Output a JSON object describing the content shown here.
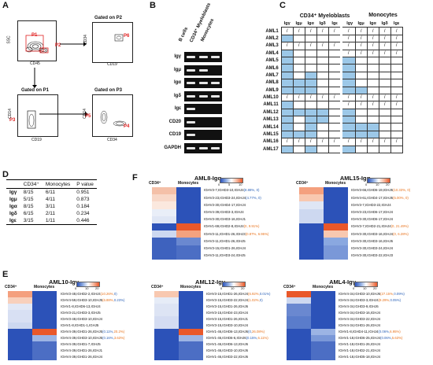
{
  "panels": {
    "A": "A",
    "B": "B",
    "C": "C",
    "D": "D",
    "E": "E",
    "F": "F"
  },
  "flow": {
    "ssc": "SSC",
    "cd45": "CD45",
    "cd34": "CD34",
    "cd19": "CD19",
    "cd14": "CD14",
    "gated_p2": "Gated on P2",
    "gated_p1": "Gated on P1",
    "gated_p3": "Gated on P3",
    "p1": "P1",
    "p2": "P2",
    "p3": "P3",
    "p4": "P4",
    "p5": "P5",
    "p6": "P6"
  },
  "gel": {
    "columns": [
      "B cells",
      "CD34⁺ Myeloblasts",
      "Monocytes"
    ],
    "rows": [
      "Igγ",
      "Igμ",
      "Igα",
      "Igδ",
      "Igε",
      "CD20",
      "CD19",
      "GAPDH"
    ],
    "bands": [
      [
        1,
        1,
        1
      ],
      [
        1,
        1,
        0
      ],
      [
        1,
        1,
        1
      ],
      [
        1,
        1,
        1
      ],
      [
        1,
        0,
        0
      ],
      [
        1,
        0,
        0
      ],
      [
        1,
        0,
        0
      ],
      [
        1,
        1,
        1
      ]
    ]
  },
  "table_c": {
    "group1": "CD34⁺ Myeloblasts",
    "group2": "Monocytes",
    "isotypes": [
      "Igγ",
      "Igμ",
      "Igα",
      "Igδ",
      "Igε"
    ],
    "rows": [
      "AML1",
      "AML2",
      "AML3",
      "AML4",
      "AML5",
      "AML6",
      "AML7",
      "AML8",
      "AML9",
      "AML10",
      "AML11",
      "AML12",
      "AML13",
      "AML14",
      "AML15",
      "AML16",
      "AML17"
    ],
    "cells": [
      [
        "/",
        "/",
        "/",
        "/",
        "/",
        "/",
        "/",
        "/",
        "/",
        "/"
      ],
      [
        "F",
        "",
        "",
        "",
        "",
        "/",
        "/",
        "/",
        "/",
        "/"
      ],
      [
        "/",
        "/",
        "/",
        "/",
        "/",
        "/",
        "/",
        "/",
        "/",
        "/"
      ],
      [
        "F",
        "",
        "",
        "",
        "",
        "/",
        "/",
        "/",
        "/",
        "/"
      ],
      [
        "F",
        "",
        "",
        "",
        "",
        "F",
        "",
        "",
        "",
        ""
      ],
      [
        "F",
        "",
        "",
        "",
        "",
        "F",
        "",
        "",
        "",
        ""
      ],
      [
        "F",
        "",
        "F",
        "",
        "",
        "F",
        "",
        "",
        "",
        ""
      ],
      [
        "F",
        "F",
        "F",
        "",
        "",
        "F",
        "",
        "",
        "",
        ""
      ],
      [
        "F",
        "F",
        "F",
        "",
        "",
        "F",
        "F",
        "",
        "",
        ""
      ],
      [
        "/",
        "/",
        "/",
        "/",
        "/",
        "/",
        "/",
        "/",
        "/",
        "/"
      ],
      [
        "F",
        "",
        "",
        "",
        "",
        "/",
        "/",
        "/",
        "/",
        "/"
      ],
      [
        "F",
        "F",
        "F",
        "F",
        "",
        "F",
        "",
        "",
        "",
        ""
      ],
      [
        "F",
        "",
        "F",
        "F",
        "",
        "F",
        "",
        "",
        "",
        ""
      ],
      [
        "F",
        "",
        "F",
        "",
        "",
        "F",
        "F",
        "F",
        "",
        ""
      ],
      [
        "F",
        "F",
        "F",
        "",
        "",
        "F",
        "F",
        "F",
        "",
        ""
      ],
      [
        "/",
        "/",
        "/",
        "/",
        "/",
        "/",
        "/",
        "/",
        "/",
        "/"
      ],
      [
        "F",
        "",
        "F",
        "",
        "",
        "F",
        "",
        "",
        "",
        ""
      ]
    ]
  },
  "table_d": {
    "headers": [
      "",
      "CD34⁺",
      "Monocytes",
      "P value"
    ],
    "rows": [
      [
        "Igγ",
        "8/15",
        "6/11",
        "0.951"
      ],
      [
        "Igμ",
        "5/15",
        "4/11",
        "0.873"
      ],
      [
        "Igα",
        "8/15",
        "3/11",
        "0.184"
      ],
      [
        "Igδ",
        "6/15",
        "2/11",
        "0.234"
      ],
      [
        "Igε",
        "3/15",
        "1/11",
        "0.446"
      ]
    ]
  },
  "heatmaps": {
    "F1": {
      "title": "AML8-Igα",
      "col1": "CD34⁺",
      "col2": "Monocytes",
      "scale": [
        "0",
        "5",
        "10"
      ],
      "rows": [
        {
          "t": "IGHV3-7,IGHD3-10,IGHJ4 ",
          "p1": "(8.88%, 0)",
          "c1": "b"
        },
        {
          "t": "IGHV3-23,IGHD3-24,IGHJ4 ",
          "p1": "(4.77%, 0)",
          "c1": "b"
        },
        {
          "t": "IGHV3-30,IGHD4-17,IGHJ4",
          "p1": "",
          "c1": ""
        },
        {
          "t": "IGHV4-39,IGHD3-3,IGHJ4",
          "p1": "",
          "c1": ""
        },
        {
          "t": "IGHV3-30,IGHD3-16,IGHJ1",
          "p1": "",
          "c1": ""
        },
        {
          "t": "IGHV1-69,IGHD2-8,IGHJ4 ",
          "p1": "(0, 9.91%)",
          "c1": "o"
        },
        {
          "t": "IGHV3-11,IGHD1-26,IGHJ3 ",
          "p1": "(0.87%, 6.95%)",
          "c1": "o"
        },
        {
          "t": "IGHV3-11,IGHD1-26,IGHJ5",
          "p1": "",
          "c1": ""
        },
        {
          "t": "IGHV3-15,IGHD1-26,IGHJ4",
          "p1": "",
          "c1": ""
        },
        {
          "t": "IGHV3-11,IGHD3-24,IGHJ5",
          "p1": "",
          "c1": ""
        }
      ],
      "cells": [
        [
          "#f4c0a8",
          "#2c52b8"
        ],
        [
          "#f8d8c8",
          "#2c52b8"
        ],
        [
          "#fbe8de",
          "#2c52b8"
        ],
        [
          "#e9eef8",
          "#2c52b8"
        ],
        [
          "#dfe6f5",
          "#2c52b8"
        ],
        [
          "#2c52b8",
          "#e9582a"
        ],
        [
          "#cdd8f0",
          "#f3a27f"
        ],
        [
          "#3e62be",
          "#6a88d0"
        ],
        [
          "#3e62be",
          "#4c6ec4"
        ],
        [
          "#3e62be",
          "#4c6ec4"
        ]
      ]
    },
    "F2": {
      "title": "AML15-Igα",
      "col1": "CD34⁺",
      "col2": "Monocytes",
      "scale": [
        "0",
        "10",
        "20"
      ],
      "rows": [
        {
          "t": "IGHV3-66,IGHD6-19,IGHJ6 ",
          "p1": "(10.33%, 0)",
          "c1": "o"
        },
        {
          "t": "IGHV4-61,IGHD4-17,IGHJ6 ",
          "p1": "(5.00%, 0)",
          "c1": "o"
        },
        {
          "t": "IGHV3-7,IGHD3-22,IGHJ4",
          "p1": "",
          "c1": ""
        },
        {
          "t": "IGHV3-23,IGHD6-17,IGHJ4",
          "p1": "",
          "c1": ""
        },
        {
          "t": "IGHV3-30,IGHD6-17,IGHJ4",
          "p1": "",
          "c1": ""
        },
        {
          "t": "IGHV3-7,IGHD2-21,IGHJ4 ",
          "p1": "(0, 21.49%)",
          "c1": "o"
        },
        {
          "t": "IGHV3-30,IGHD3-16,IGHJ4 ",
          "p1": "(0, 6.28%)",
          "c1": "o"
        },
        {
          "t": "IGHV3-30,IGHD3-16,IGHJ6",
          "p1": "",
          "c1": ""
        },
        {
          "t": "IGHV3-30,IGHD3-24,IGHJ4",
          "p1": "",
          "c1": ""
        },
        {
          "t": "IGHV3-30,IGHD3-22,IGHJ3",
          "p1": "",
          "c1": ""
        }
      ],
      "cells": [
        [
          "#f4a07e",
          "#2c52b8"
        ],
        [
          "#f8c8b0",
          "#2c52b8"
        ],
        [
          "#dfe6f5",
          "#2c52b8"
        ],
        [
          "#cdd8f0",
          "#2c52b8"
        ],
        [
          "#cdd8f0",
          "#2c52b8"
        ],
        [
          "#2c52b8",
          "#e9582a"
        ],
        [
          "#2c52b8",
          "#f8c8b0"
        ],
        [
          "#2c52b8",
          "#8aa8e0"
        ],
        [
          "#2c52b8",
          "#7a98d8"
        ],
        [
          "#2c52b8",
          "#7a98d8"
        ]
      ]
    },
    "E1": {
      "title": "AML10-Igγ",
      "col1": "CD34⁺",
      "col2": "Monocytes",
      "scale": [
        "0",
        "10",
        "20"
      ],
      "rows": [
        {
          "t": "IGHV3-48,IGHD2-2,IGHJ4 ",
          "p1": "(10.26%, ",
          "c1": "o",
          "p2": "0)",
          "c2": "b"
        },
        {
          "t": "IGHV4-59,IGHD3-10,IGHJ5 ",
          "p1": "(6.88%, ",
          "c1": "o",
          "p2": "0.23%)",
          "c2": "b"
        },
        {
          "t": "IGHV1-8,IGHD6-13,IGHJ4",
          "p1": "",
          "c1": ""
        },
        {
          "t": "IGHV3-21,IGHD3-3,IGHJ5",
          "p1": "",
          "c1": ""
        },
        {
          "t": "IGHV3-48,IGHD3-10,IGHJ4",
          "p1": "",
          "c1": ""
        },
        {
          "t": "IGHV1-8,IGHD1-1,IGHJ5",
          "p1": "",
          "c1": ""
        },
        {
          "t": "IGHV4-39,IGHD1-26,IGHJ5 ",
          "p1": "(0.11%, ",
          "c1": "b",
          "p2": "20.2%)",
          "c2": "o"
        },
        {
          "t": "IGHV4-39,IGHD3-10,IGHJ5 ",
          "p1": "(0.16%, ",
          "c1": "b",
          "p2": "3.63%)",
          "c2": "o"
        },
        {
          "t": "IGHV4-39,IGHD1-7,IGHJ5",
          "p1": "",
          "c1": ""
        },
        {
          "t": "IGHV4-39,IGHD1-26,IGHJ1",
          "p1": "",
          "c1": ""
        },
        {
          "t": "IGHV4-39,IGHD1-26,IGHJ4",
          "p1": "",
          "c1": ""
        }
      ],
      "cells": [
        [
          "#f4a07e",
          "#2c52b8"
        ],
        [
          "#f8d0bc",
          "#2c52b8"
        ],
        [
          "#e2e8f6",
          "#2c52b8"
        ],
        [
          "#d8e0f3",
          "#2c52b8"
        ],
        [
          "#d8e0f3",
          "#2c52b8"
        ],
        [
          "#cdd8f0",
          "#2c52b8"
        ],
        [
          "#2c52b8",
          "#e9582a"
        ],
        [
          "#2c52b8",
          "#9cb4e4"
        ],
        [
          "#2c52b8",
          "#4c6ec4"
        ],
        [
          "#2c52b8",
          "#4c6ec4"
        ],
        [
          "#2c52b8",
          "#4c6ec4"
        ]
      ]
    },
    "E2": {
      "title": "AML12-Igγ",
      "col1": "CD34⁺",
      "col2": "Monocytes",
      "scale": [
        "0",
        "10",
        "20"
      ],
      "rows": [
        {
          "t": "IGHV3-15,IGHD1-26,IGHJ4 ",
          "p1": "(6.92%, ",
          "c1": "o",
          "p2": "0.01%)",
          "c2": "b"
        },
        {
          "t": "IGHV3-15,IGHD3-22,IGHJ4 ",
          "p1": "(1.02%, ",
          "c1": "o",
          "p2": "0)",
          "c2": "b"
        },
        {
          "t": "IGHV3-15,IGHD1-26,IGHJ6",
          "p1": "",
          "c1": ""
        },
        {
          "t": "IGHV3-15,IGHD4-23,IGHJ4",
          "p1": "",
          "c1": ""
        },
        {
          "t": "IGHV3-15,IGHD1-26,IGHJ1",
          "p1": "",
          "c1": ""
        },
        {
          "t": "IGHV3-15,IGHD3-10,IGHJ4",
          "p1": "",
          "c1": ""
        },
        {
          "t": "IGHV1-46,IGHD6-13,IGHJ6 ",
          "p1": "(0, ",
          "c1": "b",
          "p2": "26.08%)",
          "c2": "o"
        },
        {
          "t": "IGHV1-46,IGHD6-6,IGHJ6 ",
          "p1": "(0.15%, ",
          "c1": "b",
          "p2": "6.11%)",
          "c2": "o"
        },
        {
          "t": "IGHV1-46,IGHD6-13,IGHJ6",
          "p1": "",
          "c1": ""
        },
        {
          "t": "IGHV1-46,IGHD3-10,IGHJ6",
          "p1": "",
          "c1": ""
        },
        {
          "t": "IGHV1-46,IGHD3-22,IGHJ6",
          "p1": "",
          "c1": ""
        }
      ],
      "cells": [
        [
          "#f8c8b0",
          "#2c52b8"
        ],
        [
          "#e6ecf7",
          "#2c52b8"
        ],
        [
          "#dde4f4",
          "#2c52b8"
        ],
        [
          "#dde4f4",
          "#2c52b8"
        ],
        [
          "#d4dcf2",
          "#2c52b8"
        ],
        [
          "#d4dcf2",
          "#2c52b8"
        ],
        [
          "#2c52b8",
          "#e9582a"
        ],
        [
          "#2c52b8",
          "#9cb4e4"
        ],
        [
          "#2c52b8",
          "#4c6ec4"
        ],
        [
          "#2c52b8",
          "#4c6ec4"
        ],
        [
          "#2c52b8",
          "#4c6ec4"
        ]
      ]
    },
    "E3": {
      "title": "AML4-Igγ",
      "col1": "CD34⁺",
      "col2": "Monocytes",
      "scale": [
        "0",
        "10",
        "20"
      ],
      "rows": [
        {
          "t": "IGHV4-34,IGHD3-10,IGHJ6 ",
          "p1": "(27.15%, ",
          "c1": "o",
          "p2": "0.09%)",
          "c2": "b"
        },
        {
          "t": "IGHV4-34,IGHD3-3,IGHJ4 ",
          "p1": "(9.29%, ",
          "c1": "o",
          "p2": "0.05%)",
          "c2": "b"
        },
        {
          "t": "IGHV4-34,IGHD3-9,IGHJ6",
          "p1": "",
          "c1": ""
        },
        {
          "t": "IGHV4-34,IGHD3-16,IGHJ4",
          "p1": "",
          "c1": ""
        },
        {
          "t": "IGHV4-34,IGHD3-22,IGHJ4",
          "p1": "",
          "c1": ""
        },
        {
          "t": "IGHV4-34,IGHD1-26,IGHJ4",
          "p1": "",
          "c1": ""
        },
        {
          "t": "IGHV1-8,IGHD4-11,IGHJ4 ",
          "p1": "(0.06%, ",
          "c1": "b",
          "p2": "6.95%)",
          "c2": "o"
        },
        {
          "t": "IGHV1-18,IGHD6-25,IGHJ4 ",
          "p1": "(0.06%, ",
          "c1": "b",
          "p2": "5.63%)",
          "c2": "o"
        },
        {
          "t": "IGHV1-18,IGHD1-26,IGHJ4",
          "p1": "",
          "c1": ""
        },
        {
          "t": "IGHV1-18,IGHD2-21,IGHJ4",
          "p1": "",
          "c1": ""
        },
        {
          "t": "IGHV1-18,IGHD5-18,IGHJ4",
          "p1": "",
          "c1": ""
        }
      ],
      "cells": [
        [
          "#e9582a",
          "#2c52b8"
        ],
        [
          "#cdd8f0",
          "#2c52b8"
        ],
        [
          "#6a88d0",
          "#2c52b8"
        ],
        [
          "#6a88d0",
          "#2c52b8"
        ],
        [
          "#5a7ccb",
          "#2c52b8"
        ],
        [
          "#5a7ccb",
          "#2c52b8"
        ],
        [
          "#2c52b8",
          "#9cb4e4"
        ],
        [
          "#2c52b8",
          "#7a98d8"
        ],
        [
          "#2c52b8",
          "#4c6ec4"
        ],
        [
          "#2c52b8",
          "#4c6ec4"
        ],
        [
          "#2c52b8",
          "#4c6ec4"
        ]
      ]
    }
  }
}
